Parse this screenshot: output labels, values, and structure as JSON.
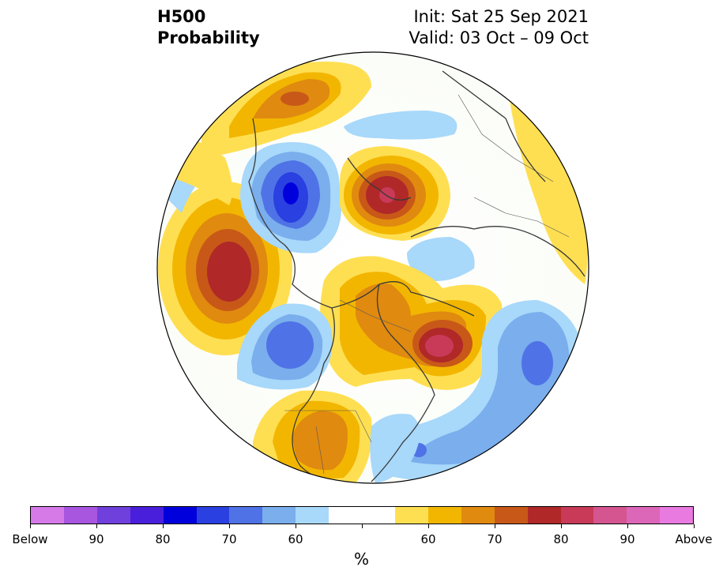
{
  "title": {
    "line1": "H500",
    "line2": "Probability"
  },
  "info": {
    "init": "Init: Sat 25 Sep 2021",
    "valid": "Valid: 03 Oct – 09 Oct"
  },
  "colorbar": {
    "colors": [
      "#d67ae8",
      "#a855e0",
      "#7040dd",
      "#4a1fdc",
      "#0000dd",
      "#2a40e0",
      "#4f73e6",
      "#7aaeed",
      "#a8d8fa",
      "#ffffff",
      "#ffffff",
      "#ffdf52",
      "#f2b600",
      "#e08a10",
      "#c85818",
      "#b02828",
      "#c83a58",
      "#d45590",
      "#dc66b8",
      "#e87ae0"
    ],
    "tick_labels": [
      "Below",
      "90",
      "80",
      "70",
      "60",
      "",
      "60",
      "70",
      "80",
      "90",
      "Above"
    ],
    "unit": "%"
  },
  "map": {
    "projection": "north-polar-stereographic",
    "anomalies": [
      {
        "sign": "below",
        "level": "80"
      },
      {
        "sign": "below",
        "level": "70"
      },
      {
        "sign": "below",
        "level": "70"
      },
      {
        "sign": "above",
        "level": "80"
      },
      {
        "sign": "above",
        "level": "80"
      },
      {
        "sign": "above",
        "level": "90"
      },
      {
        "sign": "above",
        "level": "90"
      },
      {
        "sign": "above",
        "level": "70"
      }
    ]
  }
}
